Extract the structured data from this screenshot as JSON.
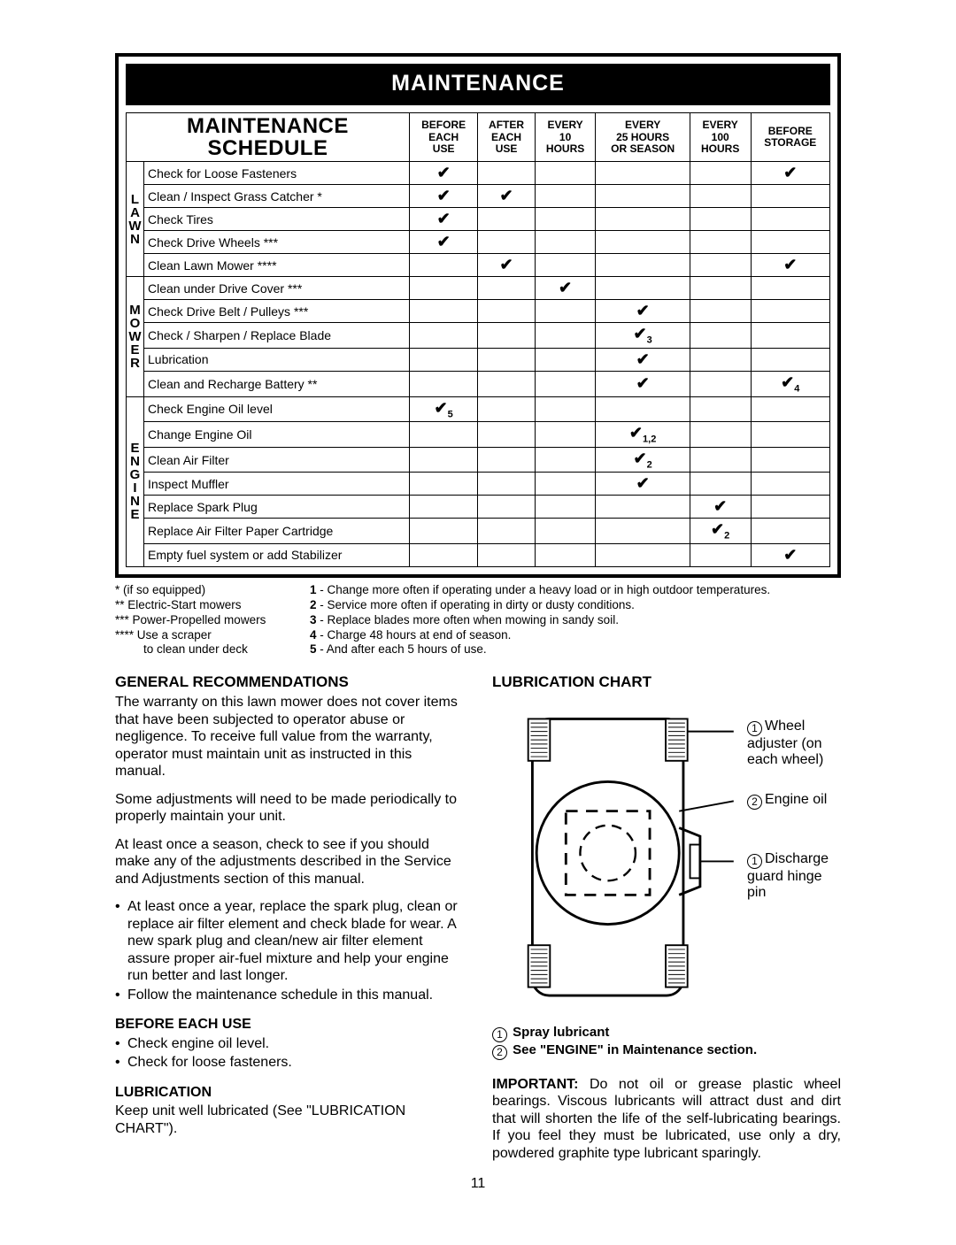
{
  "header": {
    "title": "MAINTENANCE"
  },
  "schedule": {
    "title_line1": "MAINTENANCE",
    "title_line2": "SCHEDULE",
    "columns": [
      "BEFORE EACH USE",
      "AFTER EACH USE",
      "EVERY 10 HOURS",
      "EVERY 25 HOURS OR SEASON",
      "EVERY 100 HOURS",
      "BEFORE STORAGE"
    ],
    "groups": [
      {
        "cat": "L\nA\nW\nN",
        "rows": [
          {
            "label": "Check for Loose Fasteners",
            "marks": [
              "✔",
              "",
              "",
              "",
              "",
              "✔"
            ]
          },
          {
            "label": "Clean / Inspect Grass Catcher *",
            "marks": [
              "✔",
              "✔",
              "",
              "",
              "",
              ""
            ]
          },
          {
            "label": "Check Tires",
            "marks": [
              "✔",
              "",
              "",
              "",
              "",
              ""
            ]
          },
          {
            "label": "Check Drive Wheels ***",
            "marks": [
              "✔",
              "",
              "",
              "",
              "",
              ""
            ]
          },
          {
            "label": "Clean Lawn Mower ****",
            "marks": [
              "",
              "✔",
              "",
              "",
              "",
              "✔"
            ]
          }
        ]
      },
      {
        "cat": "M\nO\nW\nE\nR",
        "rows": [
          {
            "label": "Clean under Drive Cover ***",
            "marks": [
              "",
              "",
              "✔",
              "",
              "",
              ""
            ]
          },
          {
            "label": "Check Drive Belt / Pulleys ***",
            "marks": [
              "",
              "",
              "",
              "✔",
              "",
              ""
            ]
          },
          {
            "label": "Check / Sharpen / Replace Blade",
            "marks": [
              "",
              "",
              "",
              "✔3",
              "",
              ""
            ]
          },
          {
            "label": "Lubrication",
            "marks": [
              "",
              "",
              "",
              "✔",
              "",
              ""
            ]
          },
          {
            "label": "Clean and Recharge Battery **",
            "marks": [
              "",
              "",
              "",
              "✔",
              "",
              "✔4"
            ]
          }
        ]
      },
      {
        "cat": "E\nN\nG\nI\nN\nE",
        "rows": [
          {
            "label": "Check Engine Oil level",
            "marks": [
              "✔5",
              "",
              "",
              "",
              "",
              ""
            ]
          },
          {
            "label": "Change Engine Oil",
            "marks": [
              "",
              "",
              "",
              "✔1,2",
              "",
              ""
            ]
          },
          {
            "label": "Clean Air Filter",
            "marks": [
              "",
              "",
              "",
              "✔2",
              "",
              ""
            ]
          },
          {
            "label": "Inspect Muffler",
            "marks": [
              "",
              "",
              "",
              "✔",
              "",
              ""
            ]
          },
          {
            "label": "Replace Spark Plug",
            "marks": [
              "",
              "",
              "",
              "",
              "✔",
              ""
            ]
          },
          {
            "label": "Replace Air Filter Paper Cartridge",
            "marks": [
              "",
              "",
              "",
              "",
              "✔2",
              ""
            ]
          },
          {
            "label": "Empty fuel system or add Stabilizer",
            "marks": [
              "",
              "",
              "",
              "",
              "",
              "✔"
            ]
          }
        ]
      }
    ]
  },
  "footnotes": {
    "left": [
      "* (if so equipped)",
      "** Electric-Start mowers",
      "*** Power-Propelled mowers",
      "**** Use a scraper",
      "to clean under deck"
    ],
    "right": [
      "1 - Change more often if operating under a heavy load or in high outdoor temperatures.",
      "2 - Service more often if operating in dirty or dusty conditions.",
      "3 - Replace blades more often when mowing in sandy soil.",
      "4 - Charge 48 hours at end of season.",
      "5 - And after each 5 hours of use."
    ]
  },
  "left_col": {
    "h_gen": "GENERAL RECOMMENDATIONS",
    "gen_p1": "The warranty on this lawn mower does not cover items that have been subjected to operator abuse or negligence. To receive full value from the warranty, operator must maintain unit as instructed in this manual.",
    "gen_p2": "Some adjustments will need to be made periodically to properly maintain your unit.",
    "gen_p3": "At least once a season, check to see if you should make any of the adjustments described in the Service and Adjustments section of this manual.",
    "gen_b1": "At least once a year, replace the spark plug, clean or replace air filter element and check blade for wear. A new spark plug and clean/new air filter element assure proper air-fuel mixture and help your engine run better and last longer.",
    "gen_b2": "Follow the maintenance schedule in this manual.",
    "h_before": "BEFORE EACH USE",
    "before_b1": "Check engine oil level.",
    "before_b2": "Check for loose fasteners.",
    "h_lub": "LUBRICATION",
    "lub_p": "Keep unit well lubricated (See \"LUBRICATION CHART\")."
  },
  "right_col": {
    "h_chart": "LUBRICATION CHART",
    "callouts": {
      "wheel": "Wheel adjuster (on each wheel)",
      "oil": "Engine oil",
      "discharge": "Discharge guard hinge pin"
    },
    "legend1": "Spray lubricant",
    "legend2": "See \"ENGINE\" in Maintenance section.",
    "important_lead": "IMPORTANT:",
    "important_body": "  Do not oil or grease plastic wheel bearings.  Viscous lubricants will attract dust and dirt that will shorten the life of the self-lubricating bearings. If you feel they must be lubricated, use only a dry, powdered graphite type lubricant sparingly."
  },
  "page_number": "11",
  "colors": {
    "check": "#000000",
    "border": "#000000",
    "bg": "#ffffff"
  }
}
